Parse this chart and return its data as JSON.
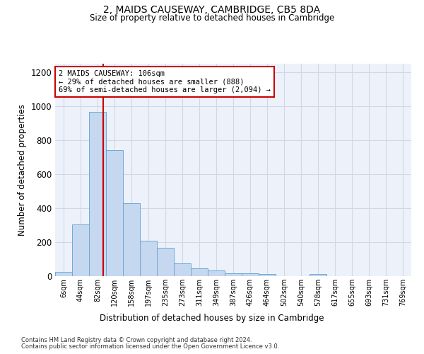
{
  "title": "2, MAIDS CAUSEWAY, CAMBRIDGE, CB5 8DA",
  "subtitle": "Size of property relative to detached houses in Cambridge",
  "xlabel": "Distribution of detached houses by size in Cambridge",
  "ylabel": "Number of detached properties",
  "bin_labels": [
    "6sqm",
    "44sqm",
    "82sqm",
    "120sqm",
    "158sqm",
    "197sqm",
    "235sqm",
    "273sqm",
    "311sqm",
    "349sqm",
    "387sqm",
    "426sqm",
    "464sqm",
    "502sqm",
    "540sqm",
    "578sqm",
    "617sqm",
    "655sqm",
    "693sqm",
    "731sqm",
    "769sqm"
  ],
  "bar_values": [
    25,
    305,
    965,
    740,
    430,
    210,
    165,
    75,
    47,
    35,
    18,
    15,
    12,
    0,
    0,
    12,
    0,
    0,
    0,
    0,
    0
  ],
  "bar_color": "#c5d8f0",
  "bar_edge_color": "#6fa8d6",
  "grid_color": "#d0d8e8",
  "background_color": "#edf2fa",
  "ylim": [
    0,
    1250
  ],
  "yticks": [
    0,
    200,
    400,
    600,
    800,
    1000,
    1200
  ],
  "red_line_x": 2.33,
  "annotation_text": "2 MAIDS CAUSEWAY: 106sqm\n← 29% of detached houses are smaller (888)\n69% of semi-detached houses are larger (2,094) →",
  "annotation_box_color": "#ffffff",
  "annotation_border_color": "#cc0000",
  "footnote1": "Contains HM Land Registry data © Crown copyright and database right 2024.",
  "footnote2": "Contains public sector information licensed under the Open Government Licence v3.0."
}
